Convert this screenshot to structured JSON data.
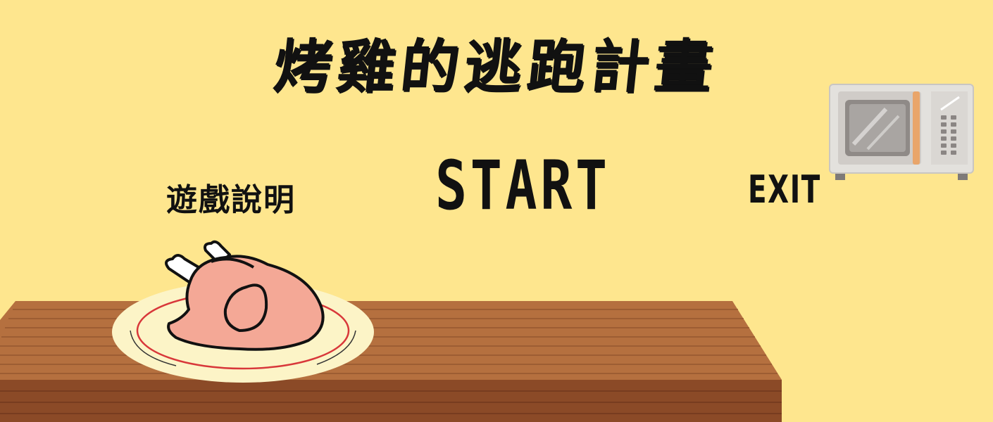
{
  "title": "烤雞的逃跑計畫",
  "menu": {
    "howto_label": "遊戲說明",
    "start_label": "START",
    "exit_label": "EXIT"
  },
  "colors": {
    "background": "#FEE68E",
    "table": "#B36A3C",
    "table_front": "#7E3F22",
    "plate": "#FCF4C7",
    "chicken": "#F4A896",
    "microwave": "#E3E1DD"
  },
  "icons": {
    "table": "wooden-table",
    "plate": "plate",
    "chicken": "roast-chicken",
    "microwave": "microwave-oven"
  }
}
